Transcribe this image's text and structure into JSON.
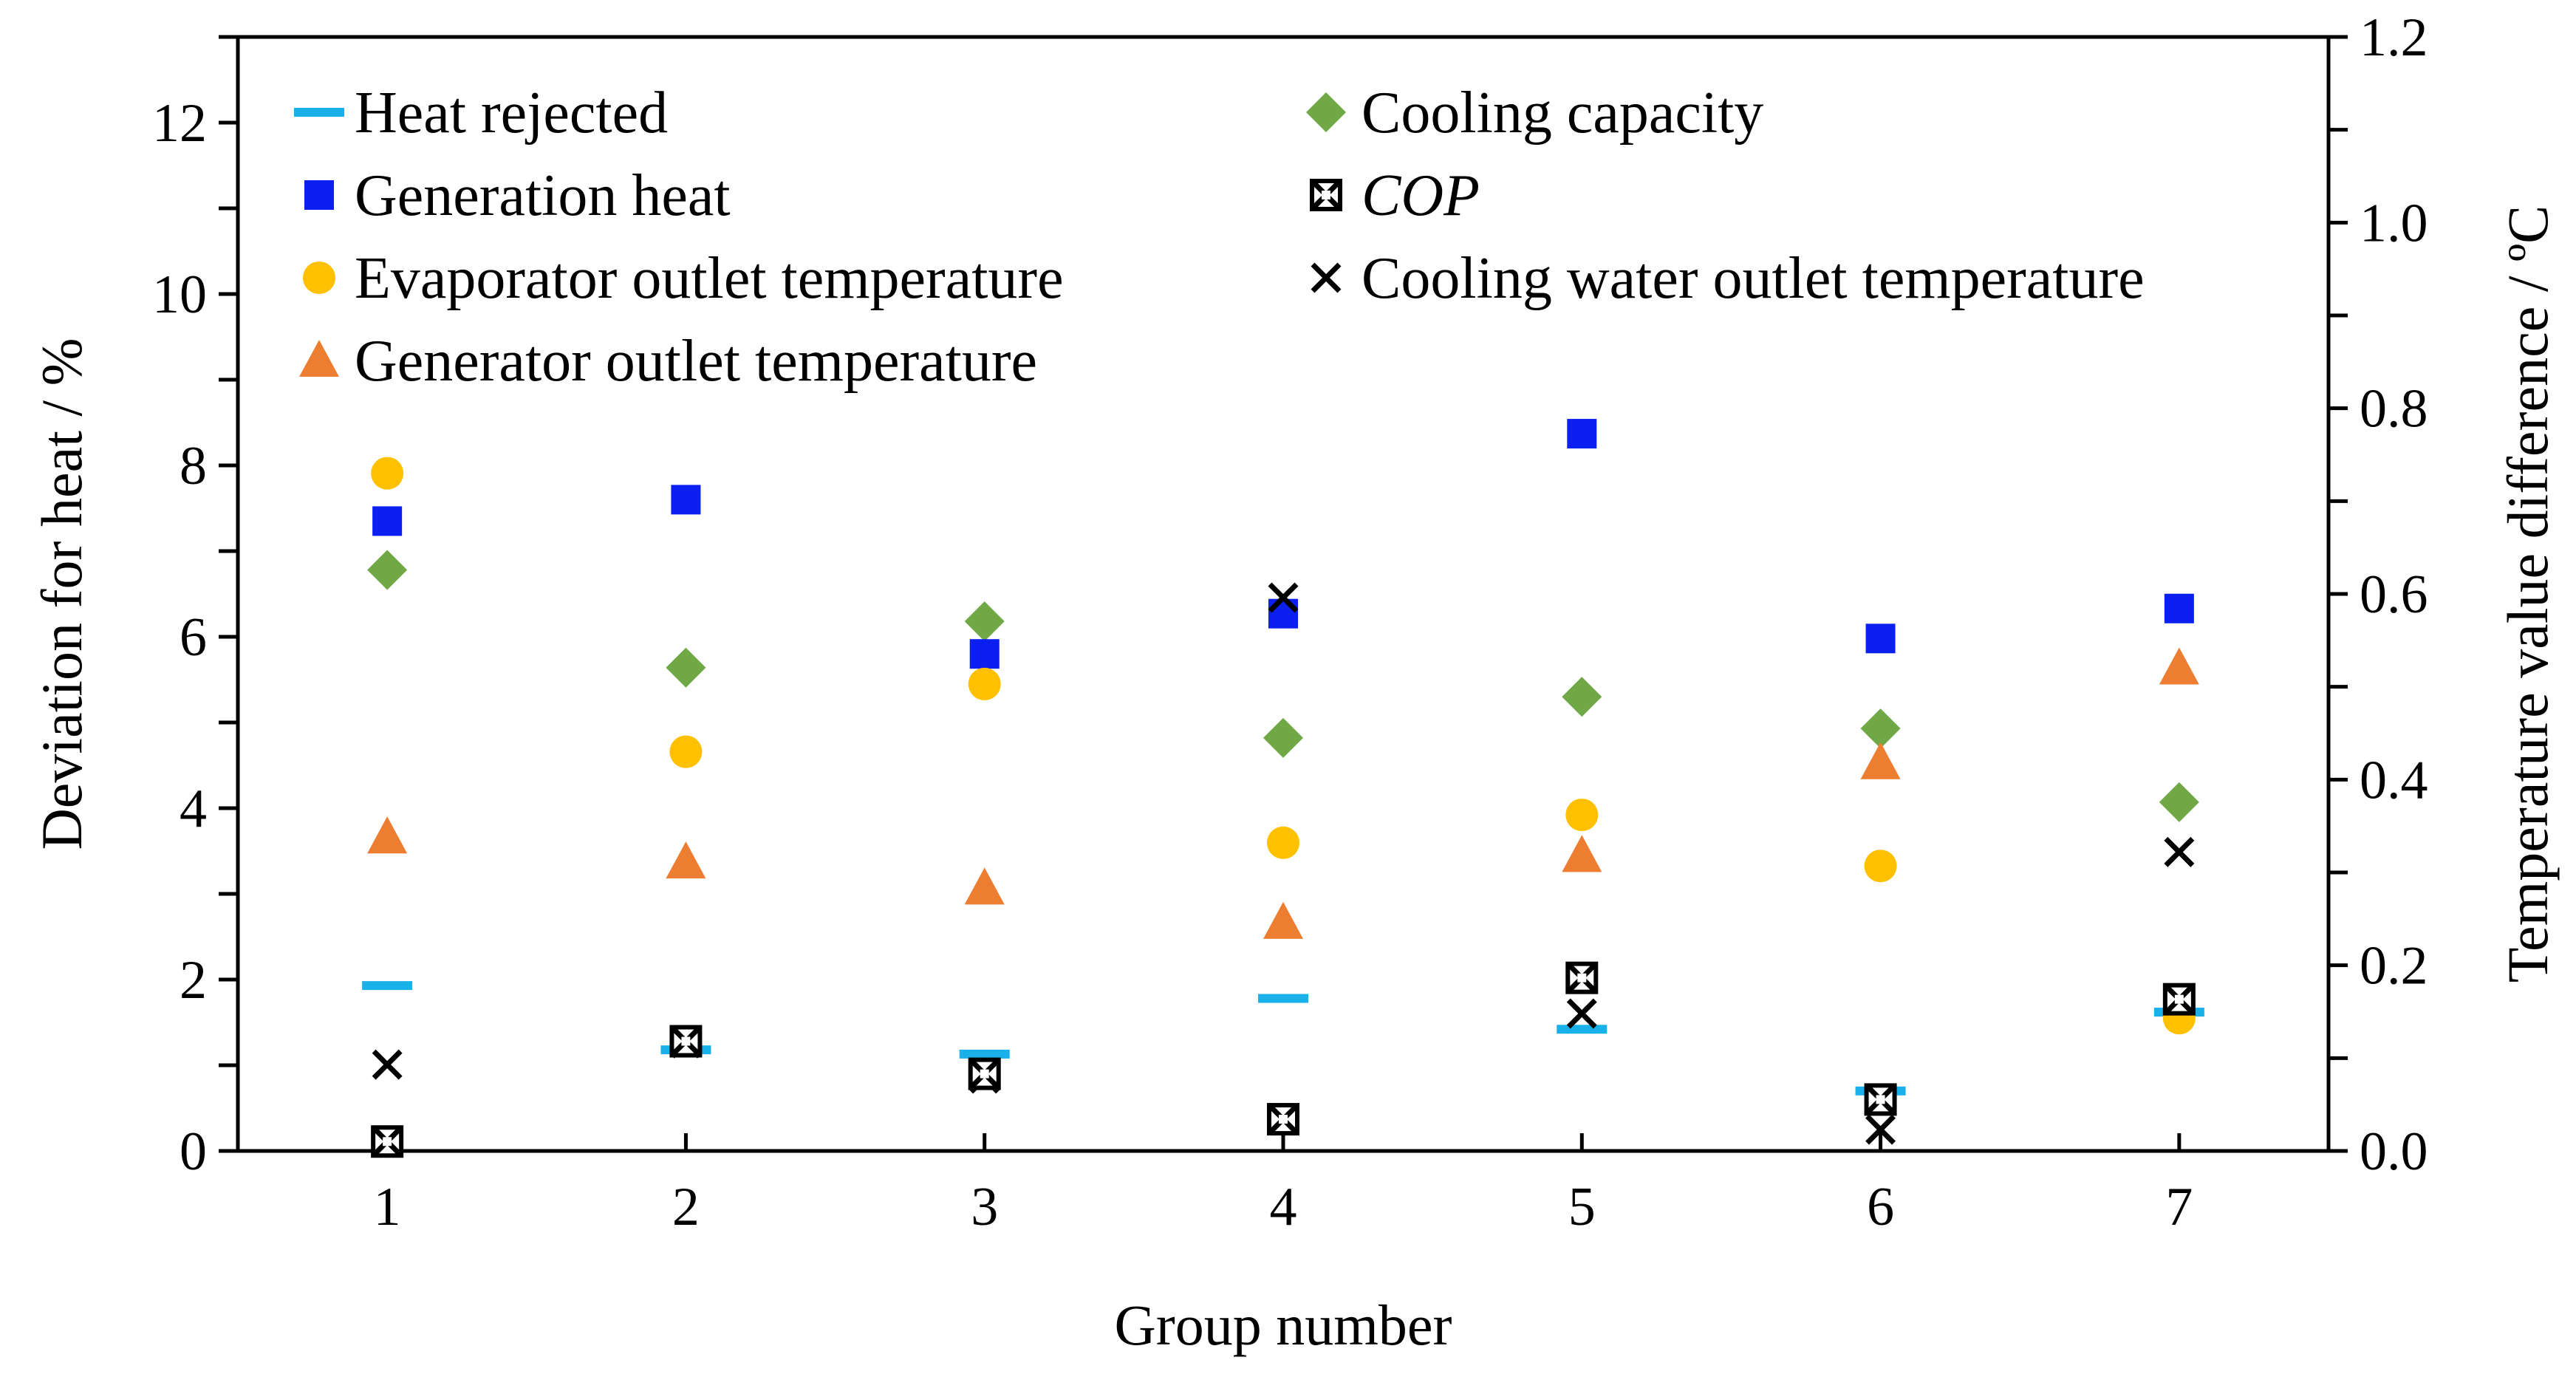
{
  "chart_data": {
    "type": "scatter",
    "xlabel": "Group number",
    "ylabel_left": "Deviation for heat / %",
    "ylabel_right": "Temperature value difference / ºC",
    "categories": [
      "1",
      "2",
      "3",
      "4",
      "5",
      "6",
      "7"
    ],
    "y_left": {
      "lim": [
        0,
        13
      ],
      "ticks": [
        0,
        2,
        4,
        6,
        8,
        10,
        12
      ],
      "tick_labels": [
        "0",
        "2",
        "4",
        "6",
        "8",
        "10",
        "12"
      ]
    },
    "y_right": {
      "lim": [
        0,
        1.2
      ],
      "ticks": [
        0,
        0.2,
        0.4,
        0.6,
        0.8,
        1.0,
        1.2
      ],
      "tick_labels": [
        "0.0",
        "0.2",
        "0.4",
        "0.6",
        "0.8",
        "1.0",
        "1.2"
      ]
    },
    "grid": false,
    "legend_position": "top",
    "series": [
      {
        "name": "Heat rejected",
        "axis": "left",
        "marker": "dash",
        "color": "#1ab0ea",
        "values": [
          1.93,
          1.18,
          1.13,
          1.78,
          1.42,
          0.7,
          1.62
        ]
      },
      {
        "name": "Cooling capacity",
        "axis": "left",
        "marker": "diamond",
        "color": "#6fa844",
        "values": [
          6.78,
          5.64,
          6.18,
          4.82,
          5.3,
          4.93,
          4.07
        ]
      },
      {
        "name": "Generation heat",
        "axis": "left",
        "marker": "square",
        "color": "#0a1ff0",
        "values": [
          7.35,
          7.6,
          5.8,
          6.27,
          8.37,
          5.98,
          6.33
        ]
      },
      {
        "name": "COP",
        "axis": "left",
        "marker": "boxcross",
        "color": "#000000",
        "values": [
          0.11,
          1.28,
          0.9,
          0.37,
          2.02,
          0.6,
          1.77
        ]
      },
      {
        "name": "Evaporator outlet temperature",
        "axis": "right",
        "marker": "circle",
        "color": "#ffc000",
        "values": [
          0.73,
          0.43,
          0.503,
          0.332,
          0.362,
          0.307,
          0.143
        ]
      },
      {
        "name": "Cooling water outlet temperature",
        "axis": "right",
        "marker": "x",
        "color": "#000000",
        "values": [
          0.093,
          0.116,
          0.078,
          0.596,
          0.148,
          0.023,
          0.322
        ]
      },
      {
        "name": "Generator outlet temperature",
        "axis": "right",
        "marker": "triangle",
        "color": "#ed7d31",
        "values": [
          0.338,
          0.311,
          0.283,
          0.246,
          0.318,
          0.418,
          0.52
        ]
      }
    ]
  }
}
